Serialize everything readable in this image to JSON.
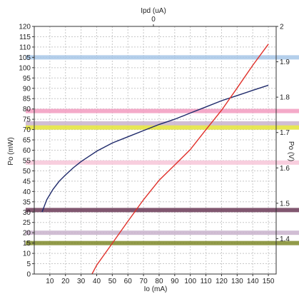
{
  "chart_data": {
    "type": "line",
    "title": "",
    "top_axis": {
      "label": "Ipd (uA)",
      "tick_labels": [
        "0"
      ]
    },
    "x_axis": {
      "label": "Io (mA)",
      "range": [
        0,
        155
      ],
      "tick_labels": [
        "10",
        "20",
        "30",
        "40",
        "50",
        "60",
        "70",
        "80",
        "90",
        "100",
        "110",
        "120",
        "130",
        "140",
        "150"
      ],
      "ticks": [
        10,
        20,
        30,
        40,
        50,
        60,
        70,
        80,
        90,
        100,
        110,
        120,
        130,
        140,
        150
      ]
    },
    "y_axis_left": {
      "label": "Po (mW)",
      "range": [
        0,
        120
      ],
      "tick_labels": [
        "0",
        "5",
        "10",
        "15",
        "20",
        "25",
        "30",
        "35",
        "40",
        "45",
        "50",
        "55",
        "60",
        "65",
        "70",
        "75",
        "80",
        "85",
        "90",
        "95",
        "100",
        "105",
        "110",
        "115",
        "120"
      ],
      "ticks": [
        0,
        5,
        10,
        15,
        20,
        25,
        30,
        35,
        40,
        45,
        50,
        55,
        60,
        65,
        70,
        75,
        80,
        85,
        90,
        95,
        100,
        105,
        110,
        115,
        120
      ]
    },
    "y_axis_right": {
      "label": "Po (V)",
      "range": [
        1.3,
        2.0
      ],
      "tick_labels": [
        "1.4",
        "1.5",
        "1.6",
        "1.7",
        "1.8",
        "1.9",
        "2"
      ],
      "ticks": [
        1.4,
        1.5,
        1.6,
        1.7,
        1.8,
        1.9,
        2.0
      ]
    },
    "grid": true,
    "series": [
      {
        "axis": "left",
        "color": "#1f2a6b",
        "x": [
          5,
          8,
          12,
          16,
          20,
          25,
          30,
          35,
          40,
          50,
          60,
          70,
          80,
          90,
          100,
          110,
          120,
          130,
          140,
          150
        ],
        "y": [
          30,
          36,
          41,
          45,
          48,
          51.5,
          54.5,
          57,
          59.5,
          63.5,
          66.5,
          69.5,
          72.5,
          75,
          78,
          81,
          84,
          86.5,
          89,
          91.5
        ]
      },
      {
        "axis": "right",
        "color": "#e0302a",
        "x": [
          37,
          40,
          50,
          60,
          70,
          80,
          90,
          100,
          110,
          120,
          130,
          140,
          150
        ],
        "y": [
          1.3,
          1.325,
          1.387,
          1.449,
          1.51,
          1.565,
          1.608,
          1.652,
          1.708,
          1.763,
          1.826,
          1.89,
          1.95
        ]
      }
    ],
    "highlight_bands": [
      {
        "y": 105,
        "color": "#a7c7e7"
      },
      {
        "y": 79,
        "color": "#f29bc0"
      },
      {
        "y": 73,
        "color": "#c9b3cc"
      },
      {
        "y": 71,
        "color": "#e3e336"
      },
      {
        "y": 54,
        "color": "#f7c6d8"
      },
      {
        "y": 31,
        "color": "#6b3a57"
      },
      {
        "y": 20,
        "color": "#c9b3cc"
      },
      {
        "y": 15,
        "color": "#7f8a2a"
      }
    ]
  }
}
